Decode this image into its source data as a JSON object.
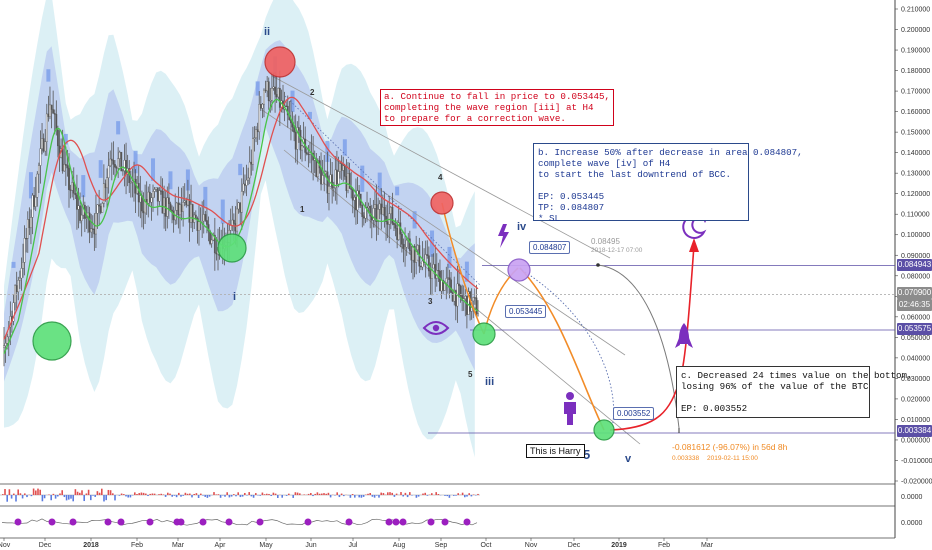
{
  "chart_data": {
    "type": "line",
    "title": "",
    "xlabel": "",
    "ylabel": "",
    "ylim": [
      -0.02,
      0.21
    ],
    "x_ticks": [
      "Nov",
      "Dec",
      "2018",
      "Feb",
      "Mar",
      "Apr",
      "May",
      "Jun",
      "Jul",
      "Aug",
      "Sep",
      "Oct",
      "Nov",
      "Dec",
      "2019",
      "Feb",
      "Mar"
    ],
    "y_ticks": [
      "0.210000",
      "0.200000",
      "0.190000",
      "0.180000",
      "0.170000",
      "0.160000",
      "0.150000",
      "0.140000",
      "0.130000",
      "0.120000",
      "0.110000",
      "0.100000",
      "0.090000",
      "0.080000",
      "0.070000",
      "0.060000",
      "0.050000",
      "0.040000",
      "0.030000",
      "0.020000",
      "0.010000",
      "0.000000",
      "-0.010000",
      "-0.020000"
    ],
    "grid": false,
    "series": [
      {
        "values": [
          0.045,
          0.08,
          0.12,
          0.165,
          0.13,
          0.11,
          0.105,
          0.14,
          0.13,
          0.115,
          0.118,
          0.11,
          0.112,
          0.105,
          0.095,
          0.102,
          0.13,
          0.172,
          0.165,
          0.148,
          0.14,
          0.125,
          0.13,
          0.118,
          0.108,
          0.112,
          0.1,
          0.09,
          0.082,
          0.075,
          0.068,
          0.064
        ]
      }
    ],
    "price_levels": [
      {
        "value": 0.084943,
        "label": "0.084943",
        "color": "#5b4fa6"
      },
      {
        "value": 0.0709,
        "label": "0.070900",
        "color": "#8c8c8c"
      },
      {
        "value": 0.053575,
        "label": "0.053575",
        "color": "#5b4fa6"
      },
      {
        "value": 0.003384,
        "label": "0.003384",
        "color": "#5b4fa6"
      }
    ],
    "price_level_sublabel": "02:46:35",
    "callouts": [
      {
        "value": 0.084807,
        "label": "0.084807"
      },
      {
        "value": 0.053445,
        "label": "0.053445"
      },
      {
        "value": 0.003552,
        "label": "0.003552"
      },
      {
        "value": 0.08495,
        "label": "0.08495"
      }
    ],
    "callout_detail": "2018-12-17 07:00",
    "wave_labels": {
      "ii": "ii",
      "i": "i",
      "iii": "iii",
      "iv": "iv",
      "v": "v",
      "n1": "1",
      "n2": "2",
      "n3": "3",
      "n4": "4",
      "n5": "5",
      "n5big": "5"
    },
    "notes": {
      "a": "a. Continue to fall in price to 0.053445,\ncompleting the wave region [iii] at H4\nto prepare for a correction wave.",
      "b": "b. Increase 50% after decrease in area 0.084807,\ncomplete wave [iv] of H4\nto start the last downtrend of BCC.\n\nEP: 0.053445\nTP: 0.084807\n* SL",
      "c": "c. Decreased 24 times value on the bottom,\nlosing 96% of the value of the BTC\n\nEP: 0.003552"
    },
    "measure": {
      "text": "-0.081612 (-96.07%) in 56d 8h",
      "sub1": "0.003338",
      "sub2": "2019-02-11  15:00"
    },
    "harry_label": "This is Harry",
    "indicator_ticks": [
      "0.0000",
      "0.0000"
    ],
    "colors": {
      "candles": "#555555",
      "ema_red": "#e05050",
      "ema_green": "#48c448",
      "cloud": "#b9c9ef",
      "level_line": "#5b4fa6",
      "orange": "#f28c28",
      "red_arrow": "#e8222a",
      "purple": "#7b2fbe"
    }
  }
}
